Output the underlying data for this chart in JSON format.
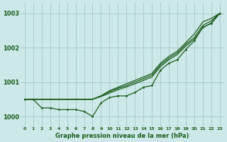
{
  "title": "Graphe pression niveau de la mer (hPa)",
  "background_color": "#cce8e8",
  "grid_color": "#aacccc",
  "line_color": "#1a5c1a",
  "x_labels": [
    "0",
    "1",
    "2",
    "3",
    "4",
    "5",
    "6",
    "7",
    "8",
    "9",
    "10",
    "11",
    "12",
    "13",
    "14",
    "15",
    "16",
    "17",
    "18",
    "19",
    "20",
    "21",
    "22",
    "23"
  ],
  "xlim": [
    -0.5,
    23.5
  ],
  "ylim": [
    999.72,
    1003.3
  ],
  "yticks": [
    1000,
    1001,
    1002,
    1003
  ],
  "measured": [
    1000.5,
    1000.5,
    1000.25,
    1000.25,
    1000.2,
    1000.2,
    1000.2,
    1000.15,
    1000.0,
    1000.4,
    1000.55,
    1000.6,
    1000.6,
    1000.7,
    1000.85,
    1000.9,
    1001.35,
    1001.55,
    1001.65,
    1001.95,
    1002.2,
    1002.6,
    1002.7,
    1003.0
  ],
  "forecast1": [
    1000.5,
    1000.5,
    1000.5,
    1000.5,
    1000.5,
    1000.5,
    1000.5,
    1000.5,
    1000.5,
    1000.6,
    1000.75,
    1000.85,
    1000.95,
    1001.05,
    1001.15,
    1001.25,
    1001.55,
    1001.75,
    1001.9,
    1002.15,
    1002.4,
    1002.75,
    1002.85,
    1003.0
  ],
  "forecast2": [
    1000.5,
    1000.5,
    1000.5,
    1000.5,
    1000.5,
    1000.5,
    1000.5,
    1000.5,
    1000.5,
    1000.6,
    1000.72,
    1000.82,
    1000.9,
    1001.0,
    1001.1,
    1001.2,
    1001.5,
    1001.7,
    1001.85,
    1002.1,
    1002.3,
    1002.65,
    1002.78,
    1003.0
  ],
  "forecast3": [
    1000.5,
    1000.5,
    1000.5,
    1000.5,
    1000.5,
    1000.5,
    1000.5,
    1000.5,
    1000.5,
    1000.58,
    1000.68,
    1000.78,
    1000.86,
    1000.95,
    1001.05,
    1001.15,
    1001.45,
    1001.65,
    1001.8,
    1002.05,
    1002.25,
    1002.58,
    1002.72,
    1003.0
  ]
}
